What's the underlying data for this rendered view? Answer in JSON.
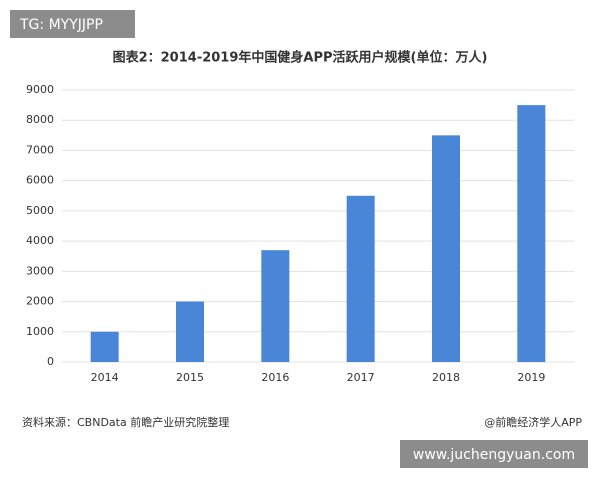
{
  "chart_data": {
    "type": "bar",
    "title": "图表2：2014-2019年中国健身APP活跃用户规模(单位：万人)",
    "categories": [
      "2014",
      "2015",
      "2016",
      "2017",
      "2018",
      "2019"
    ],
    "values": [
      1000,
      2000,
      3700,
      5500,
      7500,
      8500
    ],
    "color": "#4a86d8",
    "ylim": [
      0,
      9000
    ],
    "yticks": [
      0,
      1000,
      2000,
      3000,
      4000,
      5000,
      6000,
      7000,
      8000,
      9000
    ],
    "grid": true,
    "source": "资料来源：CBNData 前瞻产业研究院整理",
    "credit": "@前瞻经济学人APP"
  },
  "badges": [
    "TG: MYYJJPP",
    "www.juchengyuan.com"
  ]
}
